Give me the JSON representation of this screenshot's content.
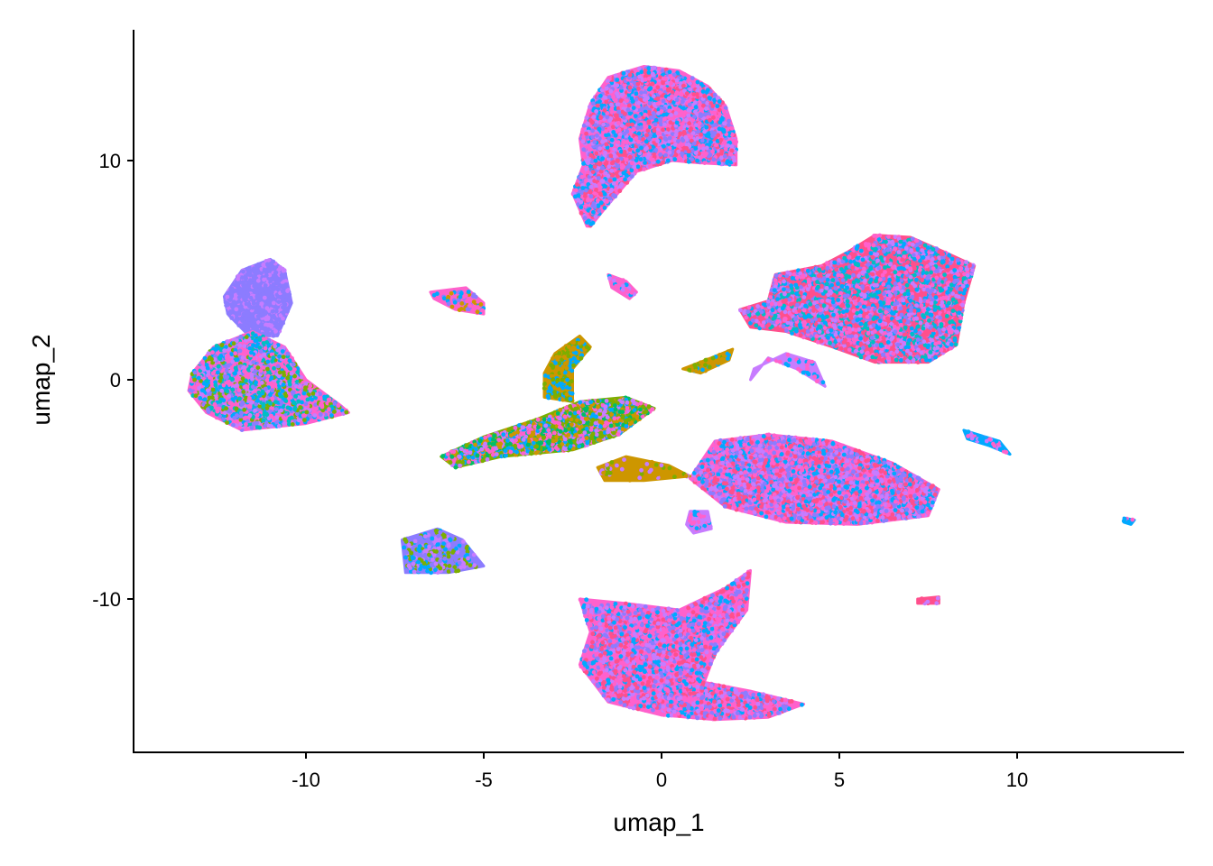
{
  "chart_data": {
    "type": "scatter",
    "title": "",
    "xlabel": "umap_1",
    "ylabel": "umap_2",
    "xlim": [
      -14.8,
      14.5
    ],
    "ylim": [
      -17.0,
      16.0
    ],
    "x_ticks": [
      -10,
      -5,
      0,
      5,
      10
    ],
    "x_tick_labels": [
      "-10",
      "-5",
      "0",
      "5",
      "10"
    ],
    "y_ticks": [
      -10,
      0,
      10
    ],
    "y_tick_labels": [
      "-10",
      "0",
      "10"
    ],
    "grid": false,
    "legend": "none",
    "palette": [
      "#F8766D",
      "#CD9600",
      "#7CAE00",
      "#00BE67",
      "#00BFC4",
      "#00A9FF",
      "#8C7CFF",
      "#C77CFF",
      "#FF61CC",
      "#FF4F8C"
    ],
    "clusters": [
      {
        "id": "top",
        "n": 2600,
        "colors": [
          "#FF61CC",
          "#FF4F8C",
          "#C77CFF",
          "#00A9FF",
          "#8C7CFF"
        ],
        "polygon": [
          [
            -2.1,
            7.0
          ],
          [
            -2.5,
            8.5
          ],
          [
            -2.2,
            9.8
          ],
          [
            -2.3,
            11.0
          ],
          [
            -2.0,
            12.6
          ],
          [
            -1.5,
            13.8
          ],
          [
            -0.5,
            14.3
          ],
          [
            0.5,
            14.1
          ],
          [
            1.3,
            13.4
          ],
          [
            1.8,
            12.5
          ],
          [
            2.1,
            11.0
          ],
          [
            2.1,
            9.8
          ],
          [
            1.0,
            9.9
          ],
          [
            0.3,
            10.0
          ],
          [
            -0.7,
            9.5
          ],
          [
            -1.5,
            8.0
          ],
          [
            -2.0,
            7.0
          ]
        ]
      },
      {
        "id": "right-upper",
        "n": 2600,
        "colors": [
          "#FF4F8C",
          "#FF61CC",
          "#C77CFF",
          "#8C7CFF",
          "#00A9FF",
          "#00BFC4"
        ],
        "polygon": [
          [
            2.2,
            3.2
          ],
          [
            3.0,
            3.6
          ],
          [
            3.2,
            4.8
          ],
          [
            4.5,
            5.2
          ],
          [
            5.2,
            5.8
          ],
          [
            6.0,
            6.6
          ],
          [
            7.0,
            6.5
          ],
          [
            8.0,
            5.8
          ],
          [
            8.8,
            5.2
          ],
          [
            8.5,
            3.5
          ],
          [
            8.3,
            1.6
          ],
          [
            7.5,
            0.8
          ],
          [
            6.0,
            0.8
          ],
          [
            4.8,
            1.5
          ],
          [
            3.5,
            2.2
          ],
          [
            2.5,
            2.4
          ]
        ]
      },
      {
        "id": "right-mid",
        "n": 2700,
        "colors": [
          "#FF61CC",
          "#FF4F8C",
          "#C77CFF",
          "#00A9FF",
          "#8C7CFF"
        ],
        "polygon": [
          [
            0.8,
            -4.5
          ],
          [
            1.5,
            -2.8
          ],
          [
            3.0,
            -2.5
          ],
          [
            4.8,
            -2.8
          ],
          [
            6.5,
            -3.8
          ],
          [
            7.8,
            -5.0
          ],
          [
            7.5,
            -6.2
          ],
          [
            5.5,
            -6.6
          ],
          [
            3.5,
            -6.5
          ],
          [
            1.8,
            -5.8
          ]
        ]
      },
      {
        "id": "bottom",
        "n": 2500,
        "colors": [
          "#FF61CC",
          "#FF4F8C",
          "#C77CFF",
          "#00A9FF",
          "#8C7CFF"
        ],
        "polygon": [
          [
            -2.3,
            -10.0
          ],
          [
            -1.0,
            -10.2
          ],
          [
            0.5,
            -10.5
          ],
          [
            1.8,
            -9.5
          ],
          [
            2.5,
            -8.7
          ],
          [
            2.4,
            -10.5
          ],
          [
            1.5,
            -12.5
          ],
          [
            1.2,
            -13.8
          ],
          [
            2.5,
            -14.2
          ],
          [
            4.0,
            -14.8
          ],
          [
            3.0,
            -15.4
          ],
          [
            1.5,
            -15.5
          ],
          [
            0.0,
            -15.3
          ],
          [
            -1.5,
            -14.7
          ],
          [
            -2.3,
            -13.0
          ],
          [
            -2.0,
            -11.5
          ]
        ]
      },
      {
        "id": "left-cap",
        "n": 650,
        "colors": [
          "#8C7CFF",
          "#C77CFF",
          "#8C7CFF",
          "#8C7CFF"
        ],
        "polygon": [
          [
            -12.3,
            3.8
          ],
          [
            -11.8,
            5.0
          ],
          [
            -11.0,
            5.5
          ],
          [
            -10.6,
            5.0
          ],
          [
            -10.4,
            3.5
          ],
          [
            -10.8,
            2.0
          ],
          [
            -11.6,
            2.0
          ],
          [
            -12.2,
            3.0
          ]
        ]
      },
      {
        "id": "left-body",
        "n": 1300,
        "colors": [
          "#FF61CC",
          "#00BFC4",
          "#00A9FF",
          "#7CAE00",
          "#8C7CFF",
          "#C77CFF"
        ],
        "polygon": [
          [
            -13.2,
            0.3
          ],
          [
            -12.6,
            1.5
          ],
          [
            -11.5,
            2.2
          ],
          [
            -10.6,
            1.5
          ],
          [
            -10.0,
            0.0
          ],
          [
            -9.0,
            -1.2
          ],
          [
            -8.8,
            -1.5
          ],
          [
            -10.0,
            -2.0
          ],
          [
            -11.8,
            -2.3
          ],
          [
            -12.8,
            -1.5
          ],
          [
            -13.3,
            -0.5
          ]
        ]
      },
      {
        "id": "middle",
        "n": 1400,
        "colors": [
          "#7CAE00",
          "#CD9600",
          "#00A9FF",
          "#00BE67",
          "#C77CFF",
          "#FF61CC"
        ],
        "polygon": [
          [
            -6.2,
            -3.5
          ],
          [
            -5.0,
            -2.6
          ],
          [
            -3.5,
            -1.8
          ],
          [
            -2.3,
            -1.0
          ],
          [
            -1.0,
            -0.8
          ],
          [
            -0.2,
            -1.3
          ],
          [
            -1.2,
            -2.5
          ],
          [
            -2.5,
            -3.2
          ],
          [
            -4.5,
            -3.5
          ],
          [
            -5.8,
            -4.0
          ]
        ]
      },
      {
        "id": "middle-branch",
        "n": 200,
        "colors": [
          "#CD9600",
          "#7CAE00",
          "#00A9FF"
        ],
        "polygon": [
          [
            -3.3,
            0.3
          ],
          [
            -3.0,
            1.2
          ],
          [
            -2.3,
            2.0
          ],
          [
            -2.0,
            1.5
          ],
          [
            -2.5,
            0.5
          ],
          [
            -2.5,
            -1.0
          ],
          [
            -3.3,
            -0.8
          ]
        ]
      },
      {
        "id": "small-left",
        "n": 260,
        "colors": [
          "#8C7CFF",
          "#7CAE00",
          "#00A9FF",
          "#C77CFF"
        ],
        "polygon": [
          [
            -7.3,
            -7.3
          ],
          [
            -6.3,
            -6.8
          ],
          [
            -5.6,
            -7.3
          ],
          [
            -5.0,
            -8.5
          ],
          [
            -6.0,
            -8.8
          ],
          [
            -7.2,
            -8.8
          ]
        ]
      },
      {
        "id": "small-a",
        "n": 70,
        "colors": [
          "#FF61CC",
          "#CD9600",
          "#8C7CFF",
          "#00A9FF"
        ],
        "polygon": [
          [
            -6.5,
            4.0
          ],
          [
            -5.5,
            4.2
          ],
          [
            -5.0,
            3.5
          ],
          [
            -5.0,
            3.0
          ],
          [
            -5.8,
            3.2
          ],
          [
            -6.4,
            3.7
          ]
        ]
      },
      {
        "id": "small-b",
        "n": 30,
        "colors": [
          "#FF61CC",
          "#C77CFF",
          "#00A9FF"
        ],
        "polygon": [
          [
            -1.5,
            4.8
          ],
          [
            -1.0,
            4.5
          ],
          [
            -0.7,
            4.0
          ],
          [
            -0.9,
            3.7
          ],
          [
            -1.4,
            4.2
          ]
        ]
      },
      {
        "id": "small-c",
        "n": 40,
        "colors": [
          "#C77CFF",
          "#FF61CC",
          "#00A9FF"
        ],
        "polygon": [
          [
            2.5,
            0.0
          ],
          [
            3.0,
            1.0
          ],
          [
            3.8,
            0.5
          ],
          [
            4.6,
            -0.3
          ],
          [
            4.3,
            0.8
          ],
          [
            3.5,
            1.2
          ],
          [
            2.6,
            0.5
          ]
        ]
      },
      {
        "id": "small-d",
        "n": 40,
        "colors": [
          "#CD9600",
          "#7CAE00",
          "#00A9FF"
        ],
        "polygon": [
          [
            0.6,
            0.5
          ],
          [
            1.4,
            1.0
          ],
          [
            2.0,
            1.4
          ],
          [
            1.9,
            0.9
          ],
          [
            1.1,
            0.3
          ]
        ]
      },
      {
        "id": "small-e",
        "n": 40,
        "colors": [
          "#CD9600",
          "#7CAE00",
          "#C77CFF"
        ],
        "polygon": [
          [
            -1.8,
            -4.0
          ],
          [
            -1.0,
            -3.5
          ],
          [
            0.2,
            -3.9
          ],
          [
            0.8,
            -4.4
          ],
          [
            -0.5,
            -4.6
          ],
          [
            -1.6,
            -4.6
          ]
        ]
      },
      {
        "id": "small-f",
        "n": 40,
        "colors": [
          "#C77CFF",
          "#FF61CC",
          "#00A9FF"
        ],
        "polygon": [
          [
            0.8,
            -6.0
          ],
          [
            1.3,
            -6.0
          ],
          [
            1.4,
            -6.8
          ],
          [
            0.9,
            -7.0
          ],
          [
            0.7,
            -6.6
          ]
        ]
      },
      {
        "id": "small-g",
        "n": 30,
        "colors": [
          "#00A9FF",
          "#C77CFF",
          "#FF61CC"
        ],
        "polygon": [
          [
            8.5,
            -2.3
          ],
          [
            9.5,
            -2.8
          ],
          [
            9.8,
            -3.4
          ],
          [
            9.2,
            -3.0
          ],
          [
            8.6,
            -2.7
          ]
        ]
      },
      {
        "id": "small-h",
        "n": 10,
        "colors": [
          "#FF4F8C",
          "#C77CFF"
        ],
        "polygon": [
          [
            7.2,
            -10.0
          ],
          [
            7.8,
            -9.9
          ],
          [
            7.8,
            -10.2
          ],
          [
            7.2,
            -10.2
          ]
        ]
      },
      {
        "id": "small-i",
        "n": 6,
        "colors": [
          "#00A9FF",
          "#FF61CC"
        ],
        "polygon": [
          [
            13.0,
            -6.3
          ],
          [
            13.3,
            -6.4
          ],
          [
            13.2,
            -6.6
          ],
          [
            13.0,
            -6.5
          ]
        ]
      }
    ]
  }
}
